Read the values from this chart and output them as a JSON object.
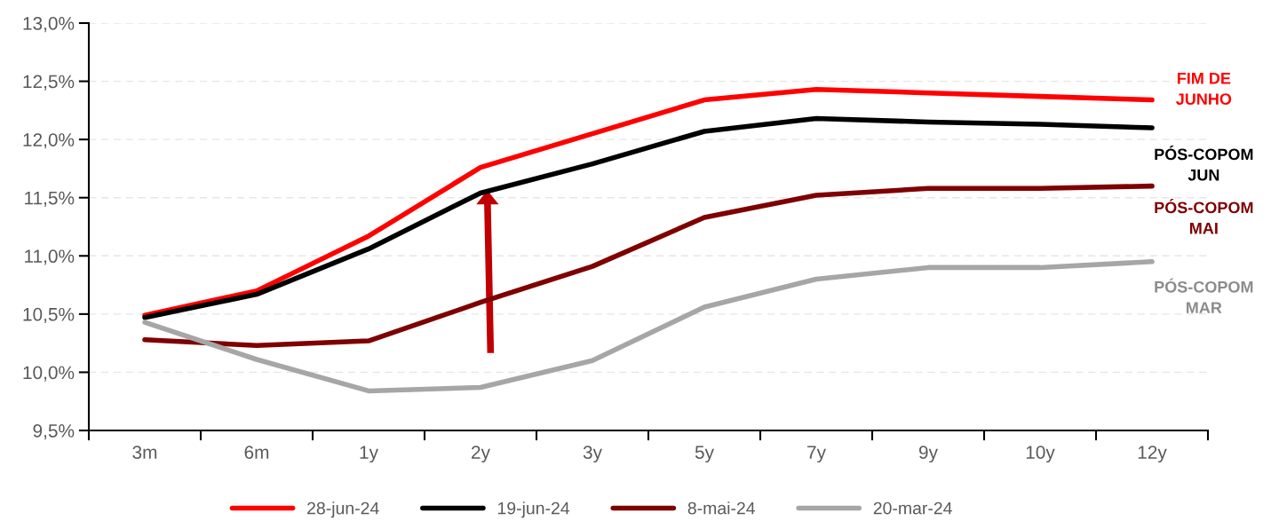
{
  "chart_data": {
    "type": "line",
    "categories": [
      "3m",
      "6m",
      "1y",
      "2y",
      "3y",
      "5y",
      "7y",
      "9y",
      "10y",
      "12y"
    ],
    "series": [
      {
        "name": "28-jun-24",
        "color": "#ff0000",
        "values": [
          10.49,
          10.7,
          11.17,
          11.76,
          12.05,
          12.34,
          12.43,
          12.4,
          12.37,
          12.34
        ]
      },
      {
        "name": "19-jun-24",
        "color": "#000000",
        "values": [
          10.47,
          10.67,
          11.06,
          11.54,
          11.79,
          12.07,
          12.18,
          12.15,
          12.13,
          12.1
        ]
      },
      {
        "name": "8-mai-24",
        "color": "#7f0000",
        "values": [
          10.28,
          10.23,
          10.27,
          10.6,
          10.91,
          11.33,
          11.52,
          11.58,
          11.58,
          11.6
        ]
      },
      {
        "name": "20-mar-24",
        "color": "#a6a6a6",
        "values": [
          10.43,
          10.11,
          9.84,
          9.87,
          10.1,
          10.56,
          10.8,
          10.9,
          10.9,
          10.95
        ]
      }
    ],
    "annotations": [
      "FIM DE\nJUNHO",
      "PÓS-COPOM\nJUN",
      "PÓS-COPOM\nMAI",
      "PÓS-COPOM\nMAR"
    ],
    "ylim": [
      9.5,
      13.0
    ],
    "yticks": [
      {
        "value": 9.5,
        "label": "9,5%"
      },
      {
        "value": 10.0,
        "label": "10,0%"
      },
      {
        "value": 10.5,
        "label": "10,5%"
      },
      {
        "value": 11.0,
        "label": "11,0%"
      },
      {
        "value": 11.5,
        "label": "11,5%"
      },
      {
        "value": 12.0,
        "label": "12,0%"
      },
      {
        "value": 12.5,
        "label": "12,5%"
      },
      {
        "value": 13.0,
        "label": "13,0%"
      }
    ],
    "grid": "y",
    "legend": "bottom",
    "marker": "none",
    "line_style": "solid"
  }
}
